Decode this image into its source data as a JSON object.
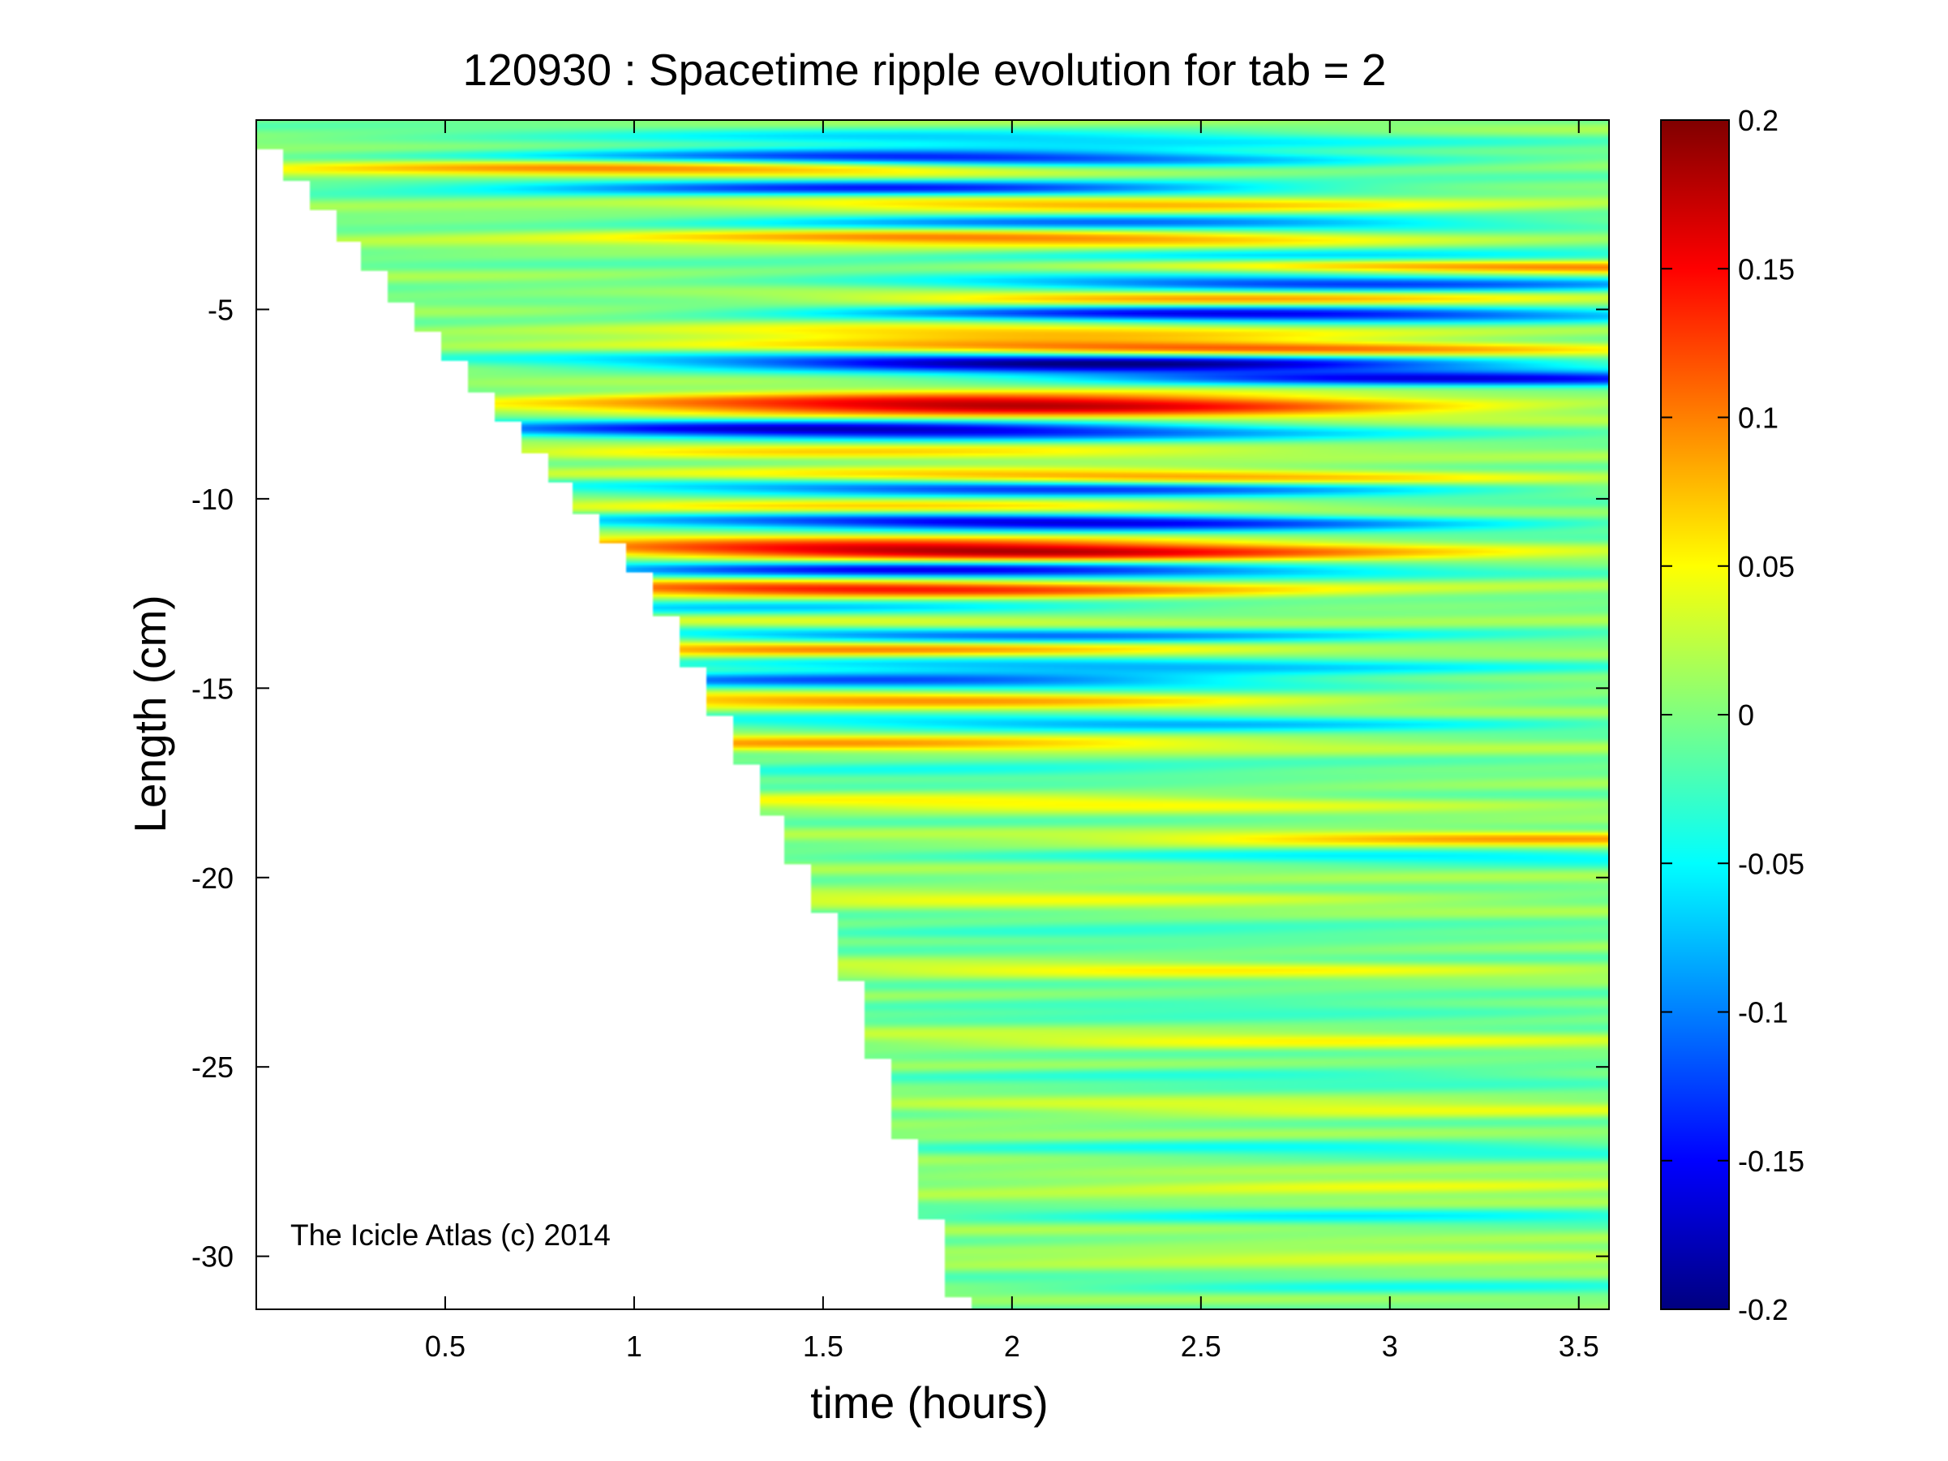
{
  "chart_data": {
    "type": "heatmap",
    "title": "120930 : Spacetime ripple evolution for tab = 2",
    "xlabel": "time (hours)",
    "ylabel": "Length (cm)",
    "xlim": [
      0.0,
      3.58
    ],
    "ylim": [
      -31.4,
      0.0
    ],
    "x_ticks": [
      0.5,
      1,
      1.5,
      2,
      2.5,
      3,
      3.5
    ],
    "x_tick_labels": [
      "0.5",
      "1",
      "1.5",
      "2",
      "2.5",
      "3",
      "3.5"
    ],
    "y_ticks": [
      -5,
      -10,
      -15,
      -20,
      -25,
      -30
    ],
    "y_tick_labels": [
      "-5",
      "-10",
      "-15",
      "-20",
      "-25",
      "-30"
    ],
    "colorbar": {
      "colormap": "jet",
      "clim": [
        -0.2,
        0.2
      ],
      "ticks": [
        0.2,
        0.15,
        0.1,
        0.05,
        0,
        -0.05,
        -0.1,
        -0.15,
        -0.2
      ],
      "tick_labels": [
        "0.2",
        "0.15",
        "0.1",
        "0.05",
        "0",
        "-0.05",
        "-0.1",
        "-0.15",
        "-0.2"
      ]
    },
    "grid": false,
    "annotation": "The Icicle Atlas (c) 2014",
    "coverage_edge": {
      "description": "data exists only below the growing icicle tip",
      "points": [
        [
          0.0,
          -0.8
        ],
        [
          1.0,
          -12.2
        ],
        [
          1.5,
          -21.5
        ],
        [
          1.83,
          -31.4
        ]
      ]
    },
    "bands": [
      {
        "y": -0.5,
        "amp": -0.06,
        "t_peak": 2.0,
        "width": 0.25
      },
      {
        "y": -1.0,
        "amp": -0.16,
        "t_peak": 1.8,
        "width": 0.22
      },
      {
        "y": -1.3,
        "amp": 0.12,
        "t_peak": 1.1,
        "width": 0.22
      },
      {
        "y": -1.8,
        "amp": -0.15,
        "t_peak": 1.7,
        "width": 0.22
      },
      {
        "y": -2.2,
        "amp": 0.1,
        "t_peak": 2.2,
        "width": 0.22
      },
      {
        "y": -2.7,
        "amp": -0.12,
        "t_peak": 2.3,
        "width": 0.22
      },
      {
        "y": -3.1,
        "amp": 0.12,
        "t_peak": 2.0,
        "width": 0.22
      },
      {
        "y": -3.6,
        "amp": -0.1,
        "t_peak": 3.0,
        "width": 0.22
      },
      {
        "y": -3.8,
        "amp": 0.14,
        "t_peak": 3.4,
        "width": 0.2
      },
      {
        "y": -4.3,
        "amp": -0.14,
        "t_peak": 2.8,
        "width": 0.22
      },
      {
        "y": -4.7,
        "amp": 0.1,
        "t_peak": 2.5,
        "width": 0.22
      },
      {
        "y": -5.1,
        "amp": -0.17,
        "t_peak": 2.6,
        "width": 0.22
      },
      {
        "y": -5.6,
        "amp": 0.09,
        "t_peak": 2.0,
        "width": 0.22
      },
      {
        "y": -6.0,
        "amp": 0.12,
        "t_peak": 2.5,
        "width": 0.2
      },
      {
        "y": -6.4,
        "amp": -0.19,
        "t_peak": 2.2,
        "width": 0.25
      },
      {
        "y": -6.8,
        "amp": -0.15,
        "t_peak": 3.2,
        "width": 0.2
      },
      {
        "y": -7.5,
        "amp": 0.19,
        "t_peak": 2.0,
        "width": 0.3
      },
      {
        "y": -8.2,
        "amp": -0.17,
        "t_peak": 1.6,
        "width": 0.25
      },
      {
        "y": -8.8,
        "amp": 0.06,
        "t_peak": 1.5,
        "width": 0.22
      },
      {
        "y": -9.4,
        "amp": 0.1,
        "t_peak": 2.3,
        "width": 0.22
      },
      {
        "y": -9.7,
        "amp": -0.14,
        "t_peak": 2.1,
        "width": 0.22
      },
      {
        "y": -10.2,
        "amp": 0.06,
        "t_peak": 1.8,
        "width": 0.22
      },
      {
        "y": -10.6,
        "amp": -0.17,
        "t_peak": 2.1,
        "width": 0.22
      },
      {
        "y": -11.1,
        "amp": 0.04,
        "t_peak": 1.6,
        "width": 0.22
      },
      {
        "y": -11.4,
        "amp": 0.18,
        "t_peak": 1.9,
        "width": 0.25
      },
      {
        "y": -11.9,
        "amp": -0.16,
        "t_peak": 1.8,
        "width": 0.22
      },
      {
        "y": -12.4,
        "amp": 0.16,
        "t_peak": 1.6,
        "width": 0.22
      },
      {
        "y": -12.9,
        "amp": -0.08,
        "t_peak": 1.4,
        "width": 0.22
      },
      {
        "y": -13.3,
        "amp": 0.07,
        "t_peak": 1.6,
        "width": 0.22
      },
      {
        "y": -13.6,
        "amp": -0.12,
        "t_peak": 1.9,
        "width": 0.22
      },
      {
        "y": -14.0,
        "amp": 0.1,
        "t_peak": 1.5,
        "width": 0.22
      },
      {
        "y": -14.4,
        "amp": -0.08,
        "t_peak": 2.2,
        "width": 0.22
      },
      {
        "y": -14.8,
        "amp": -0.12,
        "t_peak": 1.7,
        "width": 0.22
      },
      {
        "y": -15.3,
        "amp": 0.09,
        "t_peak": 1.7,
        "width": 0.22
      },
      {
        "y": -15.9,
        "amp": -0.07,
        "t_peak": 2.3,
        "width": 0.22
      },
      {
        "y": -16.5,
        "amp": 0.08,
        "t_peak": 1.5,
        "width": 0.22
      },
      {
        "y": -17.2,
        "amp": -0.05,
        "t_peak": 1.8,
        "width": 0.22
      },
      {
        "y": -18.0,
        "amp": 0.05,
        "t_peak": 2.0,
        "width": 0.22
      },
      {
        "y": -18.9,
        "amp": 0.08,
        "t_peak": 3.4,
        "width": 0.2
      },
      {
        "y": -19.4,
        "amp": -0.05,
        "t_peak": 3.3,
        "width": 0.2
      },
      {
        "y": -20.5,
        "amp": 0.04,
        "t_peak": 2.0,
        "width": 0.22
      },
      {
        "y": -21.5,
        "amp": -0.04,
        "t_peak": 2.2,
        "width": 0.22
      },
      {
        "y": -22.4,
        "amp": 0.04,
        "t_peak": 2.4,
        "width": 0.22
      },
      {
        "y": -23.4,
        "amp": -0.04,
        "t_peak": 2.6,
        "width": 0.22
      },
      {
        "y": -24.3,
        "amp": 0.04,
        "t_peak": 2.6,
        "width": 0.22
      },
      {
        "y": -25.2,
        "amp": -0.04,
        "t_peak": 2.8,
        "width": 0.22
      },
      {
        "y": -26.1,
        "amp": 0.04,
        "t_peak": 2.8,
        "width": 0.22
      },
      {
        "y": -27.1,
        "amp": -0.04,
        "t_peak": 3.0,
        "width": 0.22
      },
      {
        "y": -28.1,
        "amp": 0.05,
        "t_peak": 3.0,
        "width": 0.22
      },
      {
        "y": -28.9,
        "amp": -0.04,
        "t_peak": 3.0,
        "width": 0.22
      },
      {
        "y": -29.9,
        "amp": 0.04,
        "t_peak": 3.0,
        "width": 0.22
      },
      {
        "y": -30.8,
        "amp": -0.03,
        "t_peak": 3.0,
        "width": 0.22
      }
    ]
  }
}
